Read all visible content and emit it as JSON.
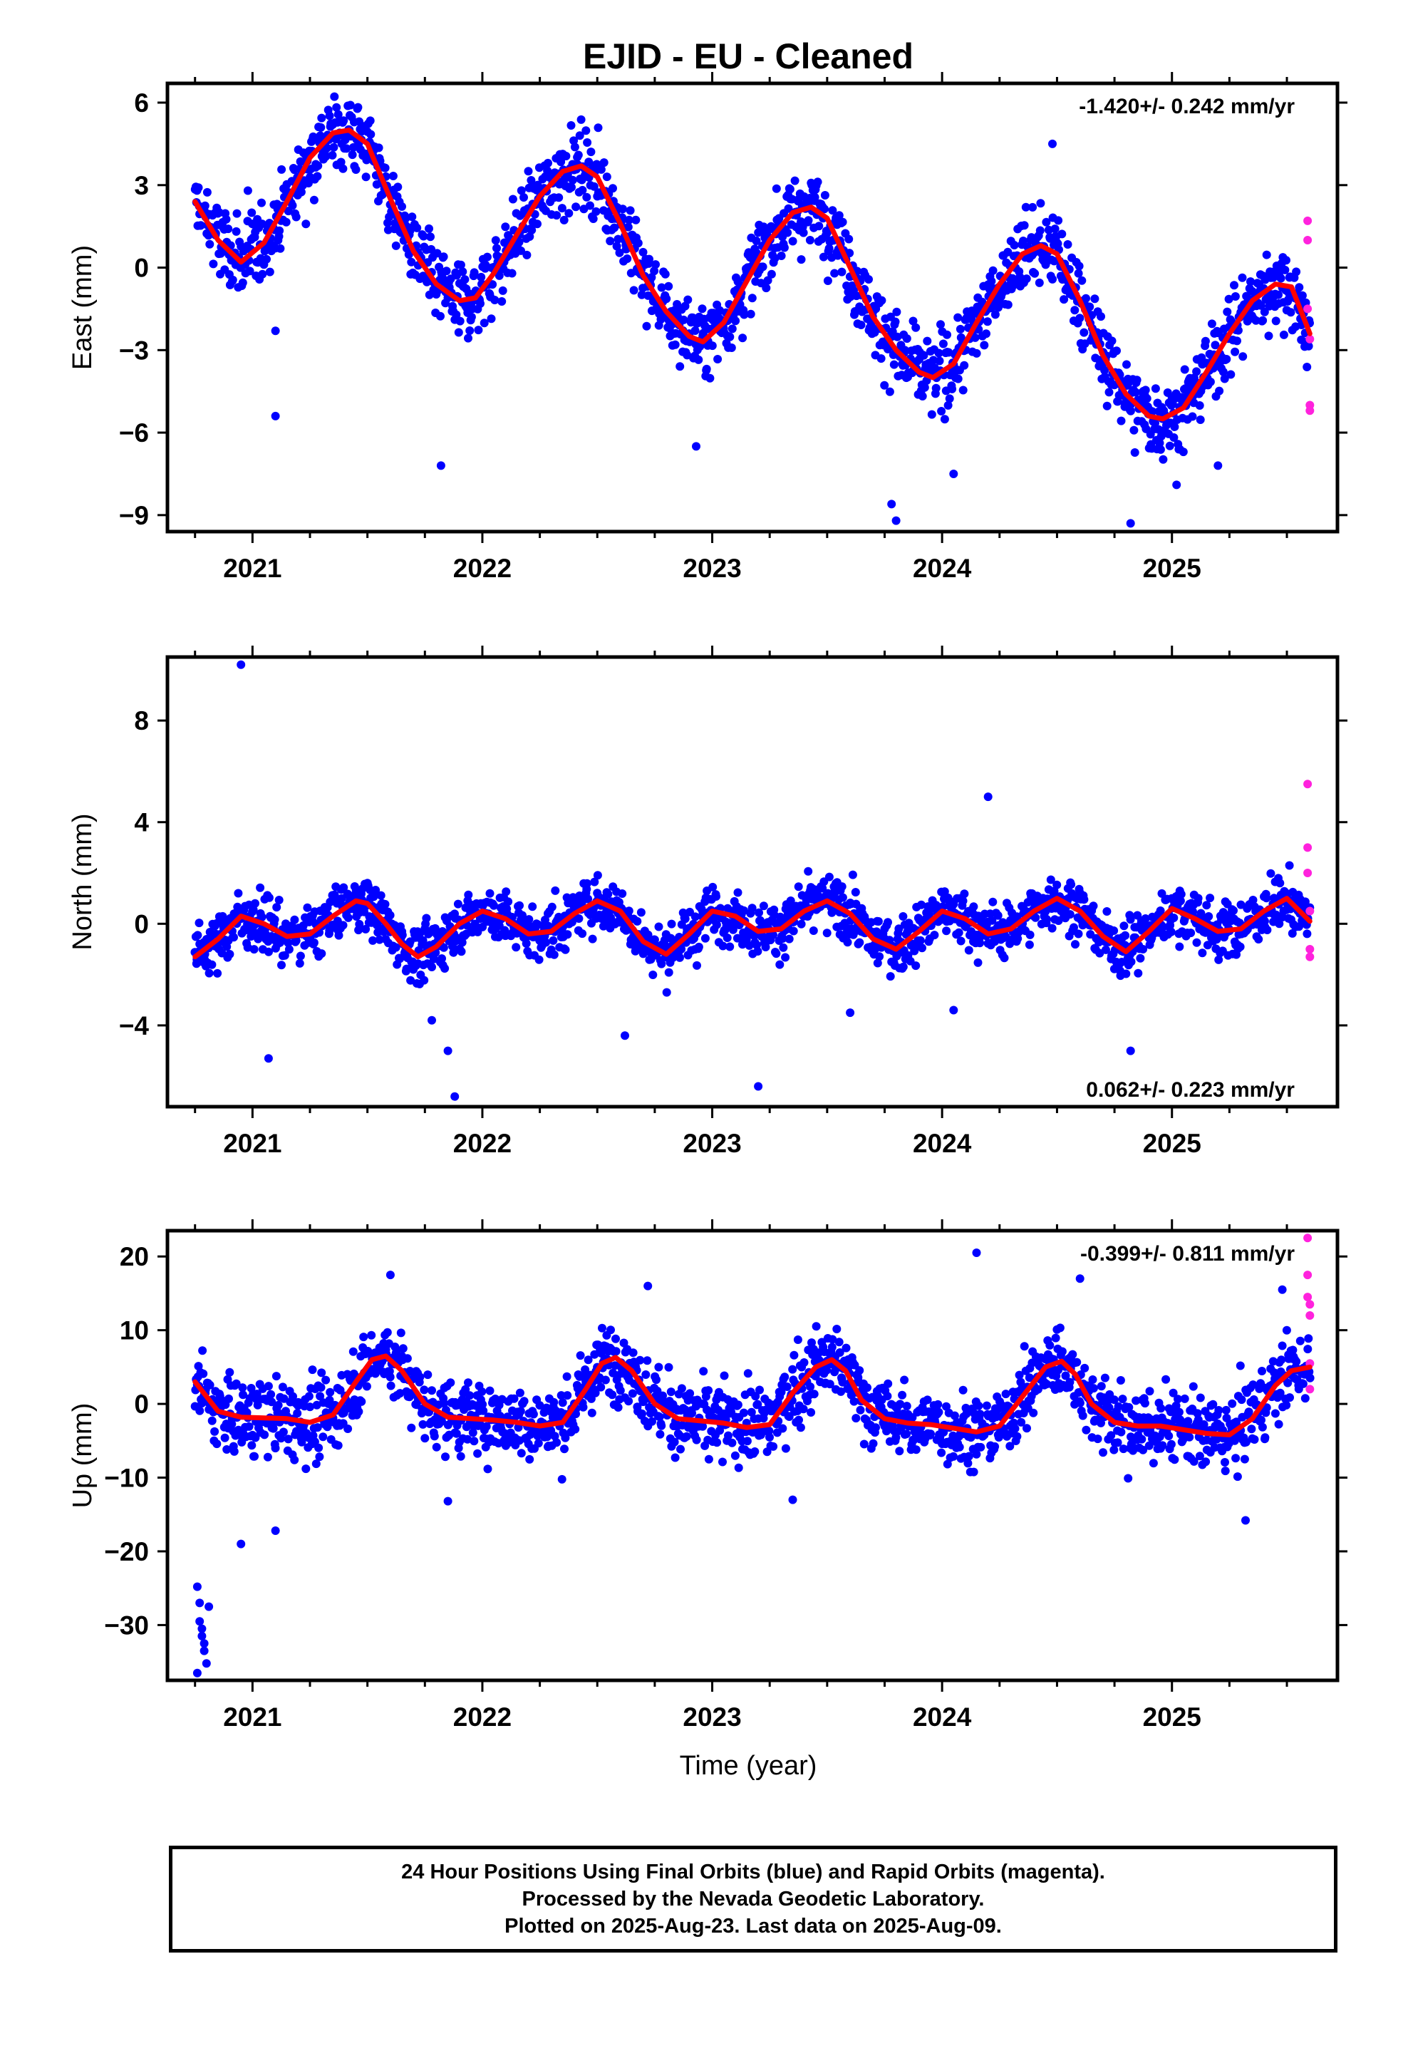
{
  "title": "EJID  - EU - Cleaned",
  "xlabel": "Time (year)",
  "footer": {
    "line1": "24 Hour Positions Using Final Orbits (blue) and Rapid Orbits (magenta).",
    "line2": "Processed by the Nevada Geodetic Laboratory.",
    "line3": "Plotted on 2025-Aug-23. Last data on 2025-Aug-09."
  },
  "colors": {
    "final": "#0000ff",
    "rapid": "#ff22dd",
    "model": "#ff0000",
    "frame": "#000000"
  },
  "chart_data": [
    {
      "type": "scatter",
      "panel": "east",
      "ylabel": "East (mm)",
      "xlim": [
        2020.63,
        2025.72
      ],
      "ylim": [
        -9.6,
        6.7
      ],
      "xticks": [
        2021,
        2022,
        2023,
        2024,
        2025
      ],
      "yticks": [
        6,
        3,
        0,
        -3,
        -6,
        -9
      ],
      "ytick_labels": [
        "6",
        "3",
        "0",
        "−3",
        "−6",
        "−9"
      ],
      "rate_text": "-1.420+/- 0.242 mm/yr",
      "rate_position": "top-right",
      "series": [
        {
          "role": "model",
          "x": [
            2020.75,
            2020.85,
            2020.95,
            2021.05,
            2021.15,
            2021.25,
            2021.35,
            2021.42,
            2021.5,
            2021.6,
            2021.7,
            2021.8,
            2021.9,
            2021.97,
            2022.05,
            2022.15,
            2022.25,
            2022.35,
            2022.43,
            2022.5,
            2022.6,
            2022.7,
            2022.8,
            2022.9,
            2022.96,
            2023.05,
            2023.15,
            2023.25,
            2023.35,
            2023.43,
            2023.5,
            2023.6,
            2023.7,
            2023.8,
            2023.9,
            2023.96,
            2024.05,
            2024.15,
            2024.25,
            2024.35,
            2024.43,
            2024.5,
            2024.6,
            2024.7,
            2024.8,
            2024.9,
            2024.96,
            2025.05,
            2025.15,
            2025.25,
            2025.35,
            2025.45,
            2025.52,
            2025.6
          ],
          "y": [
            2.4,
            1.0,
            0.2,
            0.9,
            2.4,
            4.0,
            4.9,
            5.0,
            4.5,
            2.5,
            0.6,
            -0.6,
            -1.2,
            -1.1,
            -0.2,
            1.2,
            2.6,
            3.5,
            3.7,
            3.3,
            1.6,
            -0.3,
            -1.6,
            -2.5,
            -2.7,
            -2.0,
            -0.5,
            1.0,
            2.0,
            2.2,
            1.8,
            0.0,
            -1.8,
            -3.0,
            -3.8,
            -4.0,
            -3.5,
            -2.0,
            -0.6,
            0.5,
            0.8,
            0.5,
            -1.2,
            -3.2,
            -4.6,
            -5.4,
            -5.5,
            -5.1,
            -3.8,
            -2.4,
            -1.2,
            -0.6,
            -0.7,
            -2.4
          ]
        },
        {
          "role": "rapid",
          "x": [
            2025.59,
            2025.59,
            2025.59,
            2025.6,
            2025.6,
            2025.6
          ],
          "y": [
            1.7,
            1.0,
            -1.5,
            -2.6,
            -5.0,
            -5.2
          ]
        }
      ],
      "final_points": {
        "approximation": "daily positions scattered about the model curve",
        "scatter_mm": 1.2,
        "outliers": [
          [
            2020.98,
            2.8
          ],
          [
            2021.1,
            -2.3
          ],
          [
            2021.1,
            -5.4
          ],
          [
            2021.82,
            -7.2
          ],
          [
            2022.93,
            -6.5
          ],
          [
            2023.78,
            -8.6
          ],
          [
            2023.8,
            -9.2
          ],
          [
            2024.05,
            -7.5
          ],
          [
            2024.48,
            4.5
          ],
          [
            2024.82,
            -9.3
          ],
          [
            2025.02,
            -7.9
          ],
          [
            2025.2,
            -7.2
          ]
        ]
      }
    },
    {
      "type": "scatter",
      "panel": "north",
      "ylabel": "North (mm)",
      "xlim": [
        2020.63,
        2025.72
      ],
      "ylim": [
        -7.2,
        10.5
      ],
      "xticks": [
        2021,
        2022,
        2023,
        2024,
        2025
      ],
      "yticks": [
        8,
        4,
        0,
        -4
      ],
      "ytick_labels": [
        "8",
        "4",
        "0",
        "−4"
      ],
      "rate_text": "0.062+/- 0.223 mm/yr",
      "rate_position": "bottom-right",
      "series": [
        {
          "role": "model",
          "x": [
            2020.75,
            2020.85,
            2020.95,
            2021.05,
            2021.15,
            2021.25,
            2021.35,
            2021.45,
            2021.5,
            2021.58,
            2021.65,
            2021.72,
            2021.8,
            2021.9,
            2022.0,
            2022.1,
            2022.2,
            2022.3,
            2022.4,
            2022.5,
            2022.6,
            2022.7,
            2022.8,
            2022.9,
            2023.0,
            2023.1,
            2023.2,
            2023.3,
            2023.4,
            2023.5,
            2023.6,
            2023.7,
            2023.8,
            2023.9,
            2024.0,
            2024.1,
            2024.2,
            2024.3,
            2024.4,
            2024.5,
            2024.6,
            2024.7,
            2024.8,
            2024.9,
            2025.0,
            2025.1,
            2025.2,
            2025.3,
            2025.4,
            2025.5,
            2025.6
          ],
          "y": [
            -1.3,
            -0.6,
            0.3,
            0.0,
            -0.5,
            -0.4,
            0.3,
            0.9,
            0.8,
            0.0,
            -0.8,
            -1.3,
            -0.9,
            0.0,
            0.5,
            0.2,
            -0.4,
            -0.3,
            0.4,
            0.9,
            0.5,
            -0.7,
            -1.2,
            -0.4,
            0.5,
            0.3,
            -0.3,
            -0.2,
            0.5,
            0.9,
            0.4,
            -0.6,
            -1.0,
            -0.3,
            0.5,
            0.2,
            -0.4,
            -0.2,
            0.5,
            1.0,
            0.5,
            -0.5,
            -1.1,
            -0.3,
            0.6,
            0.2,
            -0.3,
            -0.2,
            0.5,
            1.0,
            0.1
          ]
        },
        {
          "role": "rapid",
          "x": [
            2025.59,
            2025.59,
            2025.59,
            2025.6,
            2025.6,
            2025.6
          ],
          "y": [
            5.5,
            3.0,
            2.0,
            0.5,
            -1.0,
            -1.3
          ]
        }
      ],
      "final_points": {
        "approximation": "daily positions scattered about the model curve",
        "scatter_mm": 0.9,
        "outliers": [
          [
            2020.95,
            10.2
          ],
          [
            2021.07,
            -5.3
          ],
          [
            2021.78,
            -3.8
          ],
          [
            2021.85,
            -5.0
          ],
          [
            2021.88,
            -6.8
          ],
          [
            2022.62,
            -4.4
          ],
          [
            2023.2,
            -6.4
          ],
          [
            2023.6,
            -3.5
          ],
          [
            2024.05,
            -3.4
          ],
          [
            2024.2,
            5.0
          ],
          [
            2024.82,
            -5.0
          ]
        ]
      }
    },
    {
      "type": "scatter",
      "panel": "up",
      "ylabel": "Up (mm)",
      "xlim": [
        2020.63,
        2025.72
      ],
      "ylim": [
        -37.5,
        23.5
      ],
      "xticks": [
        2021,
        2022,
        2023,
        2024,
        2025
      ],
      "yticks": [
        20,
        10,
        0,
        -10,
        -20,
        -30
      ],
      "ytick_labels": [
        "20",
        "10",
        "0",
        "−10",
        "−20",
        "−30"
      ],
      "rate_text": "-0.399+/- 0.811 mm/yr",
      "rate_position": "top-right",
      "series": [
        {
          "role": "model",
          "x": [
            2020.75,
            2020.85,
            2020.95,
            2021.05,
            2021.15,
            2021.25,
            2021.35,
            2021.45,
            2021.52,
            2021.58,
            2021.65,
            2021.75,
            2021.85,
            2021.95,
            2022.05,
            2022.15,
            2022.25,
            2022.35,
            2022.45,
            2022.52,
            2022.58,
            2022.65,
            2022.75,
            2022.85,
            2022.95,
            2023.05,
            2023.15,
            2023.25,
            2023.35,
            2023.45,
            2023.52,
            2023.58,
            2023.65,
            2023.75,
            2023.85,
            2023.95,
            2024.05,
            2024.15,
            2024.25,
            2024.35,
            2024.45,
            2024.52,
            2024.58,
            2024.65,
            2024.75,
            2024.85,
            2024.95,
            2025.05,
            2025.15,
            2025.25,
            2025.35,
            2025.45,
            2025.52,
            2025.6
          ],
          "y": [
            3.0,
            -1.0,
            -1.8,
            -1.9,
            -2.0,
            -2.5,
            -1.5,
            3.0,
            6.0,
            6.5,
            4.5,
            0.0,
            -1.8,
            -2.0,
            -2.2,
            -2.5,
            -3.0,
            -2.5,
            2.0,
            5.5,
            6.3,
            4.5,
            0.0,
            -2.0,
            -2.3,
            -2.6,
            -3.2,
            -2.8,
            1.5,
            5.0,
            6.0,
            4.5,
            0.5,
            -2.0,
            -2.6,
            -2.8,
            -3.3,
            -3.8,
            -3.0,
            1.0,
            5.0,
            5.8,
            4.0,
            0.0,
            -2.5,
            -3.0,
            -3.0,
            -3.5,
            -4.0,
            -4.2,
            -2.0,
            2.5,
            4.5,
            5.0
          ]
        },
        {
          "role": "rapid",
          "x": [
            2025.59,
            2025.59,
            2025.59,
            2025.6,
            2025.6,
            2025.6,
            2025.6
          ],
          "y": [
            22.5,
            17.5,
            14.5,
            13.5,
            12.0,
            5.5,
            2.0
          ]
        }
      ],
      "final_points": {
        "approximation": "daily positions scattered about the model curve",
        "scatter_mm": 4.2,
        "early_cluster": [
          [
            2020.76,
            -24.8
          ],
          [
            2020.77,
            -27.0
          ],
          [
            2020.77,
            -29.5
          ],
          [
            2020.78,
            -30.5
          ],
          [
            2020.78,
            -31.5
          ],
          [
            2020.79,
            -32.5
          ],
          [
            2020.79,
            -33.5
          ],
          [
            2020.8,
            -35.2
          ],
          [
            2020.76,
            -36.5
          ],
          [
            2020.81,
            -27.5
          ]
        ],
        "outliers": [
          [
            2020.95,
            -19.0
          ],
          [
            2021.1,
            -17.2
          ],
          [
            2021.85,
            -13.2
          ],
          [
            2021.6,
            17.5
          ],
          [
            2022.72,
            16.0
          ],
          [
            2023.35,
            -13.0
          ],
          [
            2024.15,
            20.5
          ],
          [
            2024.6,
            17.0
          ],
          [
            2025.32,
            -15.8
          ],
          [
            2025.48,
            15.5
          ]
        ]
      }
    }
  ]
}
